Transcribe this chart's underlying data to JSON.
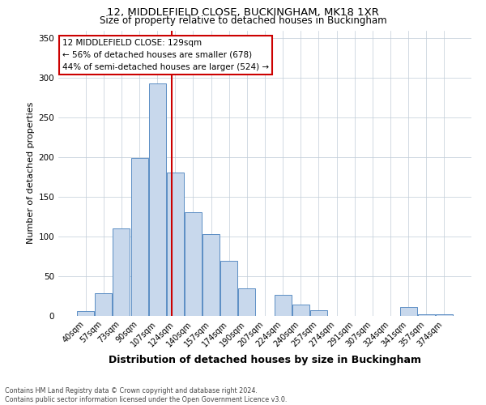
{
  "title1": "12, MIDDLEFIELD CLOSE, BUCKINGHAM, MK18 1XR",
  "title2": "Size of property relative to detached houses in Buckingham",
  "xlabel": "Distribution of detached houses by size in Buckingham",
  "ylabel": "Number of detached properties",
  "footer1": "Contains HM Land Registry data © Crown copyright and database right 2024.",
  "footer2": "Contains public sector information licensed under the Open Government Licence v3.0.",
  "bar_labels": [
    "40sqm",
    "57sqm",
    "73sqm",
    "90sqm",
    "107sqm",
    "124sqm",
    "140sqm",
    "157sqm",
    "174sqm",
    "190sqm",
    "207sqm",
    "224sqm",
    "240sqm",
    "257sqm",
    "274sqm",
    "291sqm",
    "307sqm",
    "324sqm",
    "341sqm",
    "357sqm",
    "374sqm"
  ],
  "bar_values": [
    6,
    29,
    110,
    199,
    293,
    181,
    131,
    103,
    69,
    35,
    0,
    27,
    14,
    7,
    0,
    0,
    0,
    0,
    11,
    2,
    2
  ],
  "bar_color": "#c8d8ec",
  "bar_edge_color": "#5b8ec4",
  "red_line_color": "#cc0000",
  "annotation_title": "12 MIDDLEFIELD CLOSE: 129sqm",
  "annotation_line1": "← 56% of detached houses are smaller (678)",
  "annotation_line2": "44% of semi-detached houses are larger (524) →",
  "annotation_box_color": "#ffffff",
  "annotation_box_edge": "#cc0000",
  "ylim": [
    0,
    360
  ],
  "yticks": [
    0,
    50,
    100,
    150,
    200,
    250,
    300,
    350
  ],
  "grid_color": "#c0ccd8",
  "background_color": "#ffffff",
  "title1_fontsize": 9.5,
  "title2_fontsize": 8.5,
  "ylabel_fontsize": 8,
  "xlabel_fontsize": 9,
  "tick_fontsize": 7,
  "ann_fontsize": 7.5,
  "footer_fontsize": 5.8
}
